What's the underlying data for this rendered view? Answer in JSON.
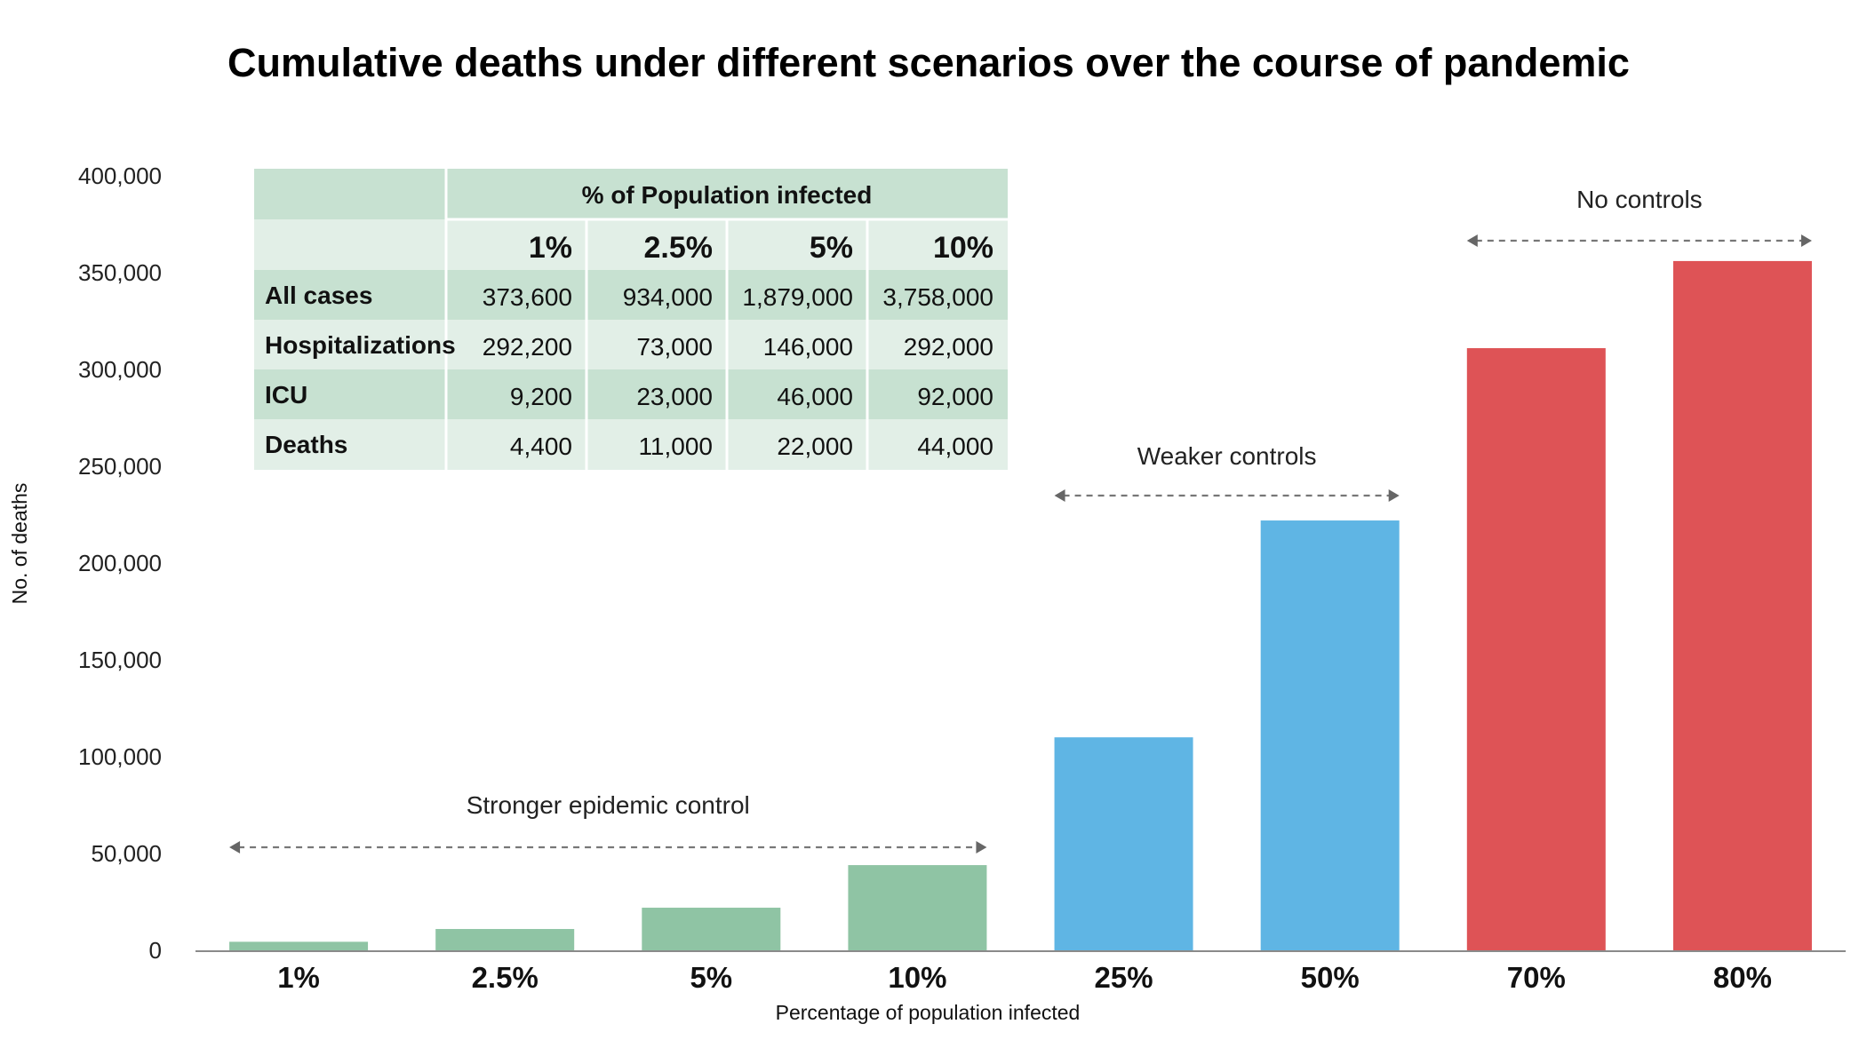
{
  "chart_data": {
    "type": "bar",
    "title": "Cumulative deaths under different scenarios over the course of pandemic",
    "xlabel": "Percentage of population infected",
    "ylabel": "No. of deaths",
    "categories": [
      "1%",
      "2.5%",
      "5%",
      "10%",
      "25%",
      "50%",
      "70%",
      "80%"
    ],
    "values": [
      4400,
      11000,
      22000,
      44000,
      110000,
      222000,
      311000,
      356000
    ],
    "bar_colors": [
      "#8fc4a4",
      "#8fc4a4",
      "#8fc4a4",
      "#8fc4a4",
      "#5fb5e4",
      "#5fb5e4",
      "#de5356",
      "#de5356"
    ],
    "ylim": [
      0,
      400000
    ],
    "yticks": [
      0,
      50000,
      100000,
      150000,
      200000,
      250000,
      300000,
      350000,
      400000
    ],
    "ytick_labels": [
      "0",
      "50,000",
      "100,000",
      "150,000",
      "200,000",
      "250,000",
      "300,000",
      "350,000",
      "400,000"
    ],
    "grid": false,
    "annotations": [
      {
        "text": "Stronger epidemic control",
        "from_category": 0,
        "to_category": 3
      },
      {
        "text": "Weaker controls",
        "from_category": 4,
        "to_category": 5
      },
      {
        "text": "No controls",
        "from_category": 6,
        "to_category": 7
      }
    ],
    "inset_table": {
      "header": "% of Population infected",
      "columns": [
        "1%",
        "2.5%",
        "5%",
        "10%"
      ],
      "rows": [
        {
          "label": "All cases",
          "values": [
            "373,600",
            "934,000",
            "1,879,000",
            "3,758,000"
          ]
        },
        {
          "label": "Hospitalizations",
          "values": [
            "292,200",
            "73,000",
            "146,000",
            "292,000"
          ]
        },
        {
          "label": "ICU",
          "values": [
            "9,200",
            "23,000",
            "46,000",
            "92,000"
          ]
        },
        {
          "label": "Deaths",
          "values": [
            "4,400",
            "11,000",
            "22,000",
            "44,000"
          ]
        }
      ],
      "colors": {
        "dark": "#c7e1d1",
        "light": "#e2efe7"
      }
    }
  }
}
